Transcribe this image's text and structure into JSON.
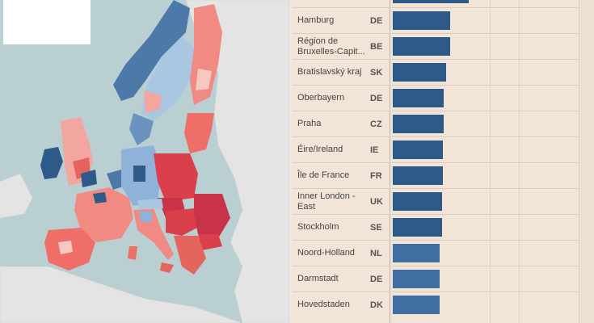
{
  "colors": {
    "bar_dark": "#2e5a8a",
    "bar_medium": "#3f6fa3",
    "sea": "#b9cfd1",
    "land_other": "#e6e6e6"
  },
  "map": {
    "legend_box": ""
  },
  "chart_data": {
    "type": "bar",
    "orientation": "horizontal",
    "categories": [
      "Hamburg",
      "Région de Bruxelles-Capit...",
      "Bratislavský kraj",
      "Oberbayern",
      "Praha",
      "Éire/Ireland",
      "Île de France",
      "Inner London - East",
      "Stockholm",
      "Noord-Holland",
      "Darmstadt",
      "Hovedstaden"
    ],
    "countries": [
      "DE",
      "BE",
      "SK",
      "DE",
      "CZ",
      "IE",
      "FR",
      "UK",
      "SE",
      "NL",
      "DE",
      "DK"
    ],
    "values": [
      0.31,
      0.31,
      0.285,
      0.275,
      0.275,
      0.27,
      0.27,
      0.265,
      0.265,
      0.25,
      0.25,
      0.25
    ],
    "top_partial_value": 0.41,
    "xlim": [
      0,
      1
    ],
    "highlight_rank": [
      1,
      1,
      1,
      1,
      1,
      1,
      1,
      1,
      1,
      2,
      2,
      2
    ],
    "title": "",
    "xlabel": "",
    "ylabel": ""
  }
}
